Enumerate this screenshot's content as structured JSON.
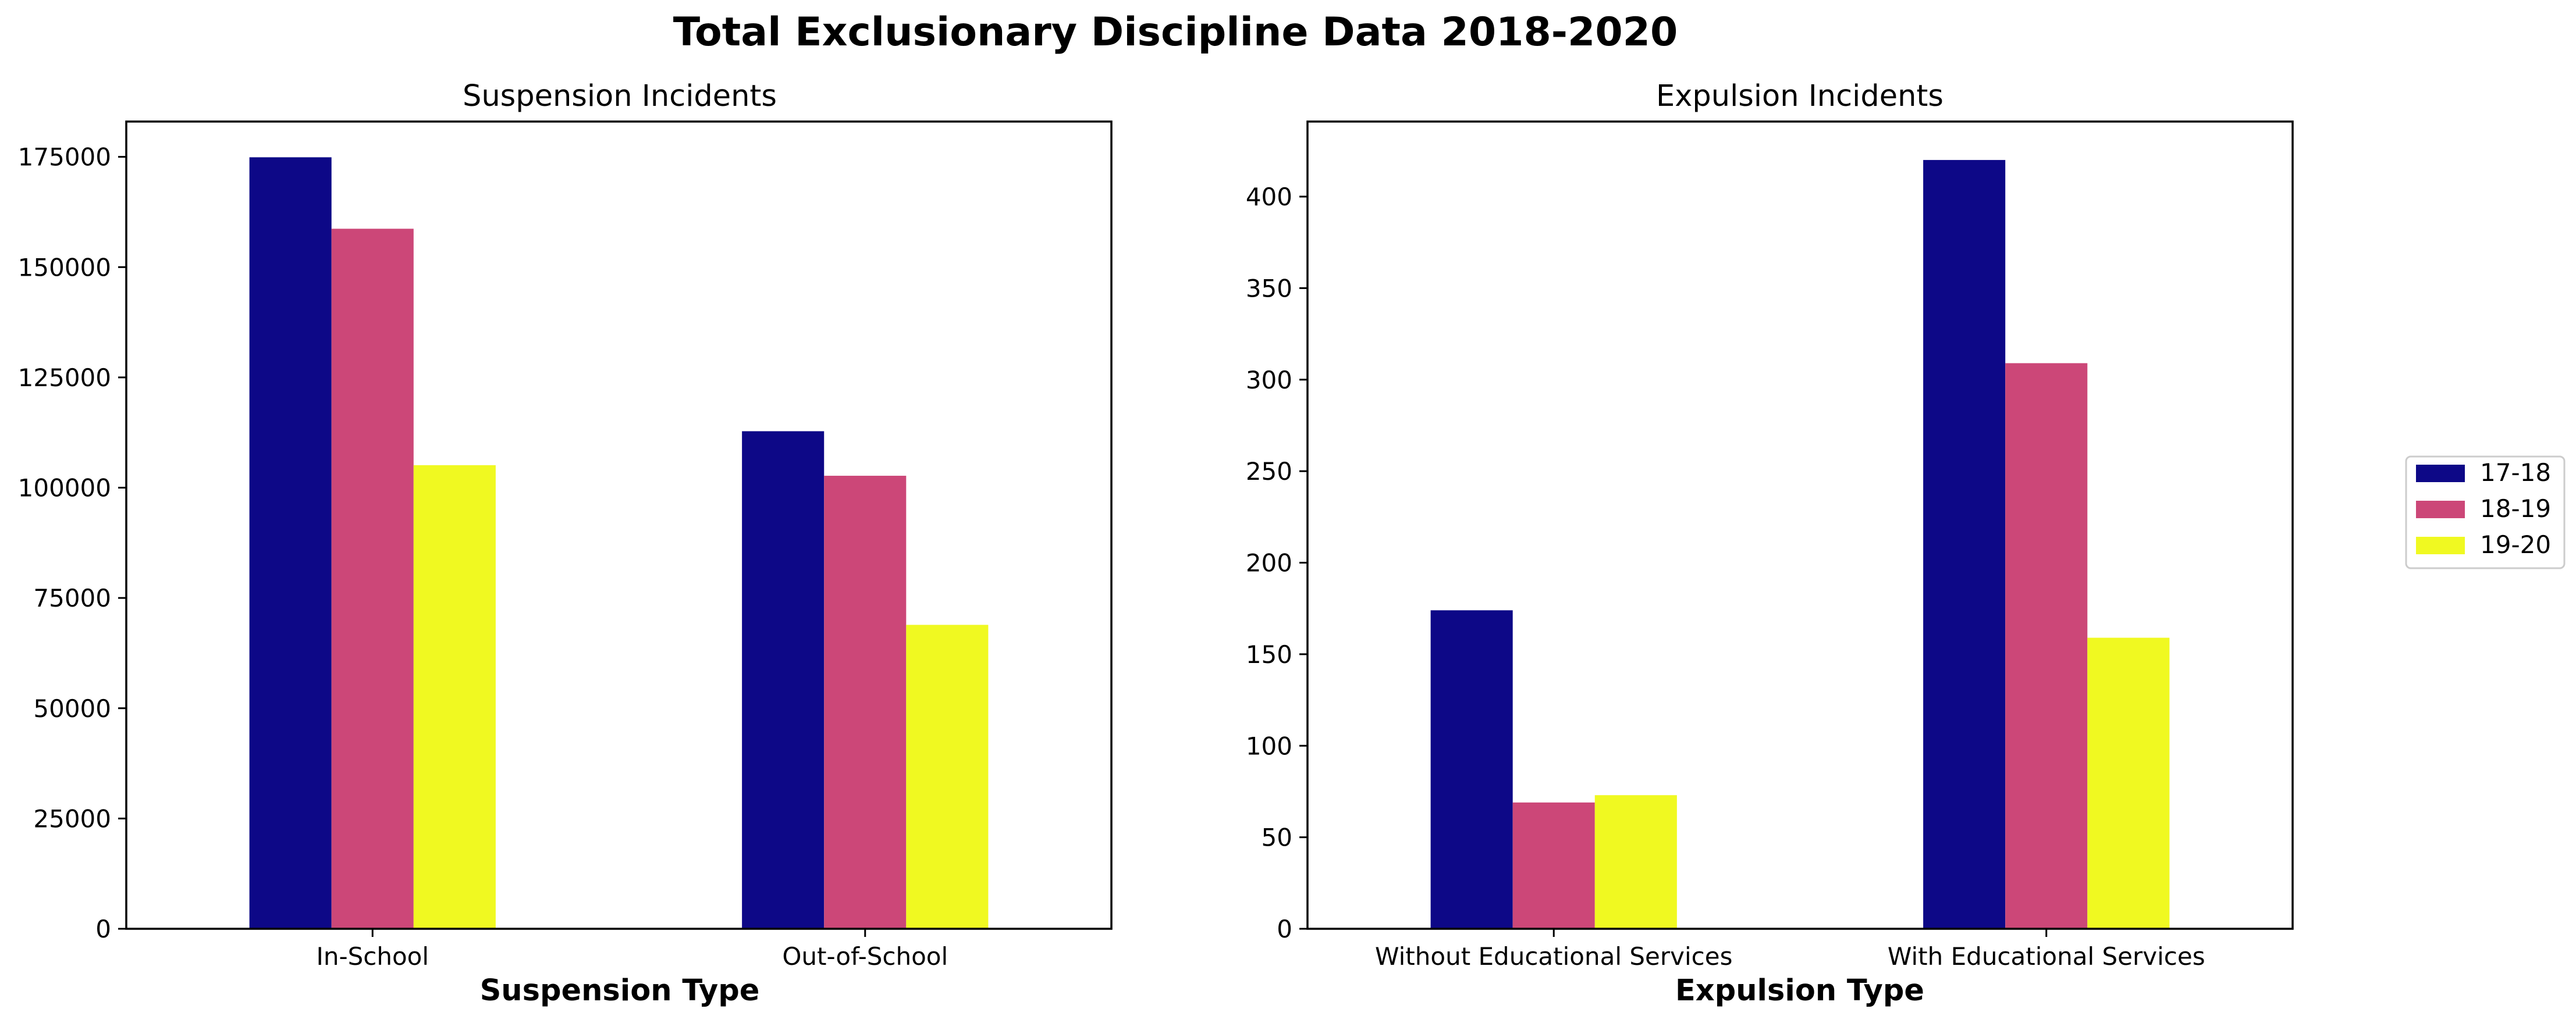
{
  "figure": {
    "title": "Total Exclusionary Discipline Data 2018-2020"
  },
  "legend": {
    "placement": "right",
    "entries": [
      {
        "label": "17-18",
        "color": "#0d0887"
      },
      {
        "label": "18-19",
        "color": "#cc4778"
      },
      {
        "label": "19-20",
        "color": "#f0f921"
      }
    ]
  },
  "chart_data": [
    {
      "type": "bar",
      "title": "Suspension Incidents",
      "xlabel": "Suspension Type",
      "ylabel": "",
      "categories": [
        "In-School",
        "Out-of-School"
      ],
      "series": [
        {
          "name": "17-18",
          "values": [
            174900,
            112800
          ]
        },
        {
          "name": "18-19",
          "values": [
            158700,
            102700
          ]
        },
        {
          "name": "19-20",
          "values": [
            105100,
            68900
          ]
        }
      ],
      "ylim": [
        0,
        183000
      ],
      "yticks": [
        0,
        25000,
        50000,
        75000,
        100000,
        125000,
        150000,
        175000
      ],
      "grid": false
    },
    {
      "type": "bar",
      "title": "Expulsion Incidents",
      "xlabel": "Expulsion Type",
      "ylabel": "",
      "categories": [
        "Without Educational Services",
        "With Educational Services"
      ],
      "series": [
        {
          "name": "17-18",
          "values": [
            174,
            420
          ]
        },
        {
          "name": "18-19",
          "values": [
            69,
            309
          ]
        },
        {
          "name": "19-20",
          "values": [
            73,
            159
          ]
        }
      ],
      "ylim": [
        0,
        441
      ],
      "yticks": [
        0,
        50,
        100,
        150,
        200,
        250,
        300,
        350,
        400
      ],
      "grid": false
    }
  ]
}
